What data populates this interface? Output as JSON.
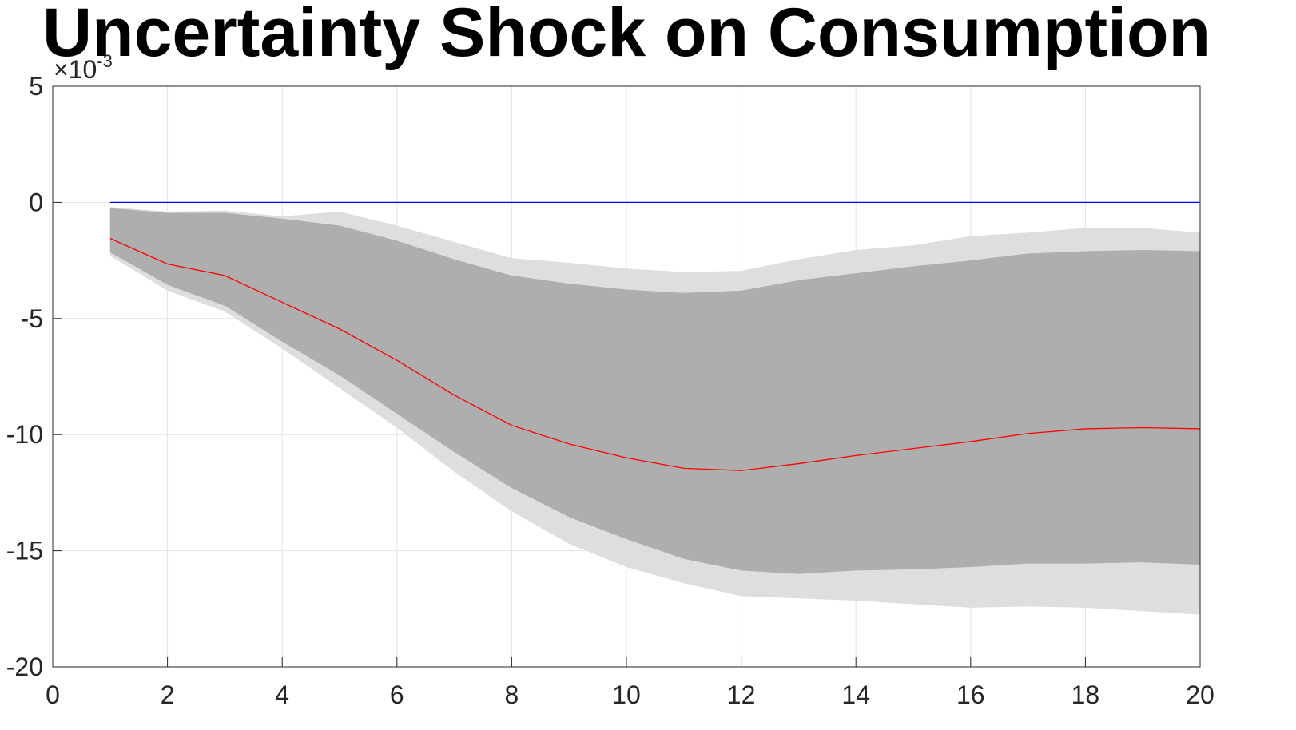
{
  "chart_data": {
    "type": "line",
    "title": "Uncertainty Shock on Consumption",
    "xlabel": "",
    "ylabel": "",
    "y_exponent_base": "×10",
    "y_exponent_power": "-3",
    "xlim": [
      0,
      20
    ],
    "ylim": [
      -20,
      5
    ],
    "xticks": [
      0,
      2,
      4,
      6,
      8,
      10,
      12,
      14,
      16,
      18,
      20
    ],
    "yticks": [
      -20,
      -15,
      -10,
      -5,
      0,
      5
    ],
    "grid": true,
    "x": [
      1,
      2,
      3,
      4,
      5,
      6,
      7,
      8,
      9,
      10,
      11,
      12,
      13,
      14,
      15,
      16,
      17,
      18,
      19,
      20
    ],
    "bands": [
      {
        "color": "#dedede",
        "upper": [
          -0.2,
          -0.4,
          -0.35,
          -0.6,
          -0.4,
          -1.0,
          -1.7,
          -2.4,
          -2.6,
          -2.85,
          -3.0,
          -2.95,
          -2.45,
          -2.05,
          -1.85,
          -1.45,
          -1.3,
          -1.1,
          -1.1,
          -1.3
        ],
        "lower": [
          -2.3,
          -3.8,
          -4.7,
          -6.3,
          -8.0,
          -9.7,
          -11.6,
          -13.3,
          -14.7,
          -15.7,
          -16.4,
          -16.95,
          -17.05,
          -17.15,
          -17.3,
          -17.45,
          -17.4,
          -17.45,
          -17.6,
          -17.75
        ]
      },
      {
        "color": "#aeaeae",
        "upper": [
          -0.25,
          -0.45,
          -0.45,
          -0.7,
          -1.0,
          -1.65,
          -2.45,
          -3.15,
          -3.5,
          -3.75,
          -3.9,
          -3.8,
          -3.35,
          -3.05,
          -2.75,
          -2.5,
          -2.2,
          -2.1,
          -2.05,
          -2.1
        ],
        "lower": [
          -2.15,
          -3.55,
          -4.45,
          -6.0,
          -7.45,
          -9.1,
          -10.75,
          -12.3,
          -13.55,
          -14.5,
          -15.35,
          -15.85,
          -16.0,
          -15.85,
          -15.8,
          -15.7,
          -15.55,
          -15.55,
          -15.5,
          -15.6
        ]
      }
    ],
    "series": [
      {
        "color": "#ff0000",
        "values": [
          -1.55,
          -2.65,
          -3.15,
          -4.3,
          -5.45,
          -6.8,
          -8.3,
          -9.6,
          -10.4,
          -11.0,
          -11.45,
          -11.55,
          -11.25,
          -10.9,
          -10.6,
          -10.3,
          -9.95,
          -9.75,
          -9.7,
          -9.75
        ]
      },
      {
        "color": "#0000ff",
        "values": [
          0,
          0,
          0,
          0,
          0,
          0,
          0,
          0,
          0,
          0,
          0,
          0,
          0,
          0,
          0,
          0,
          0,
          0,
          0,
          0
        ]
      }
    ]
  }
}
